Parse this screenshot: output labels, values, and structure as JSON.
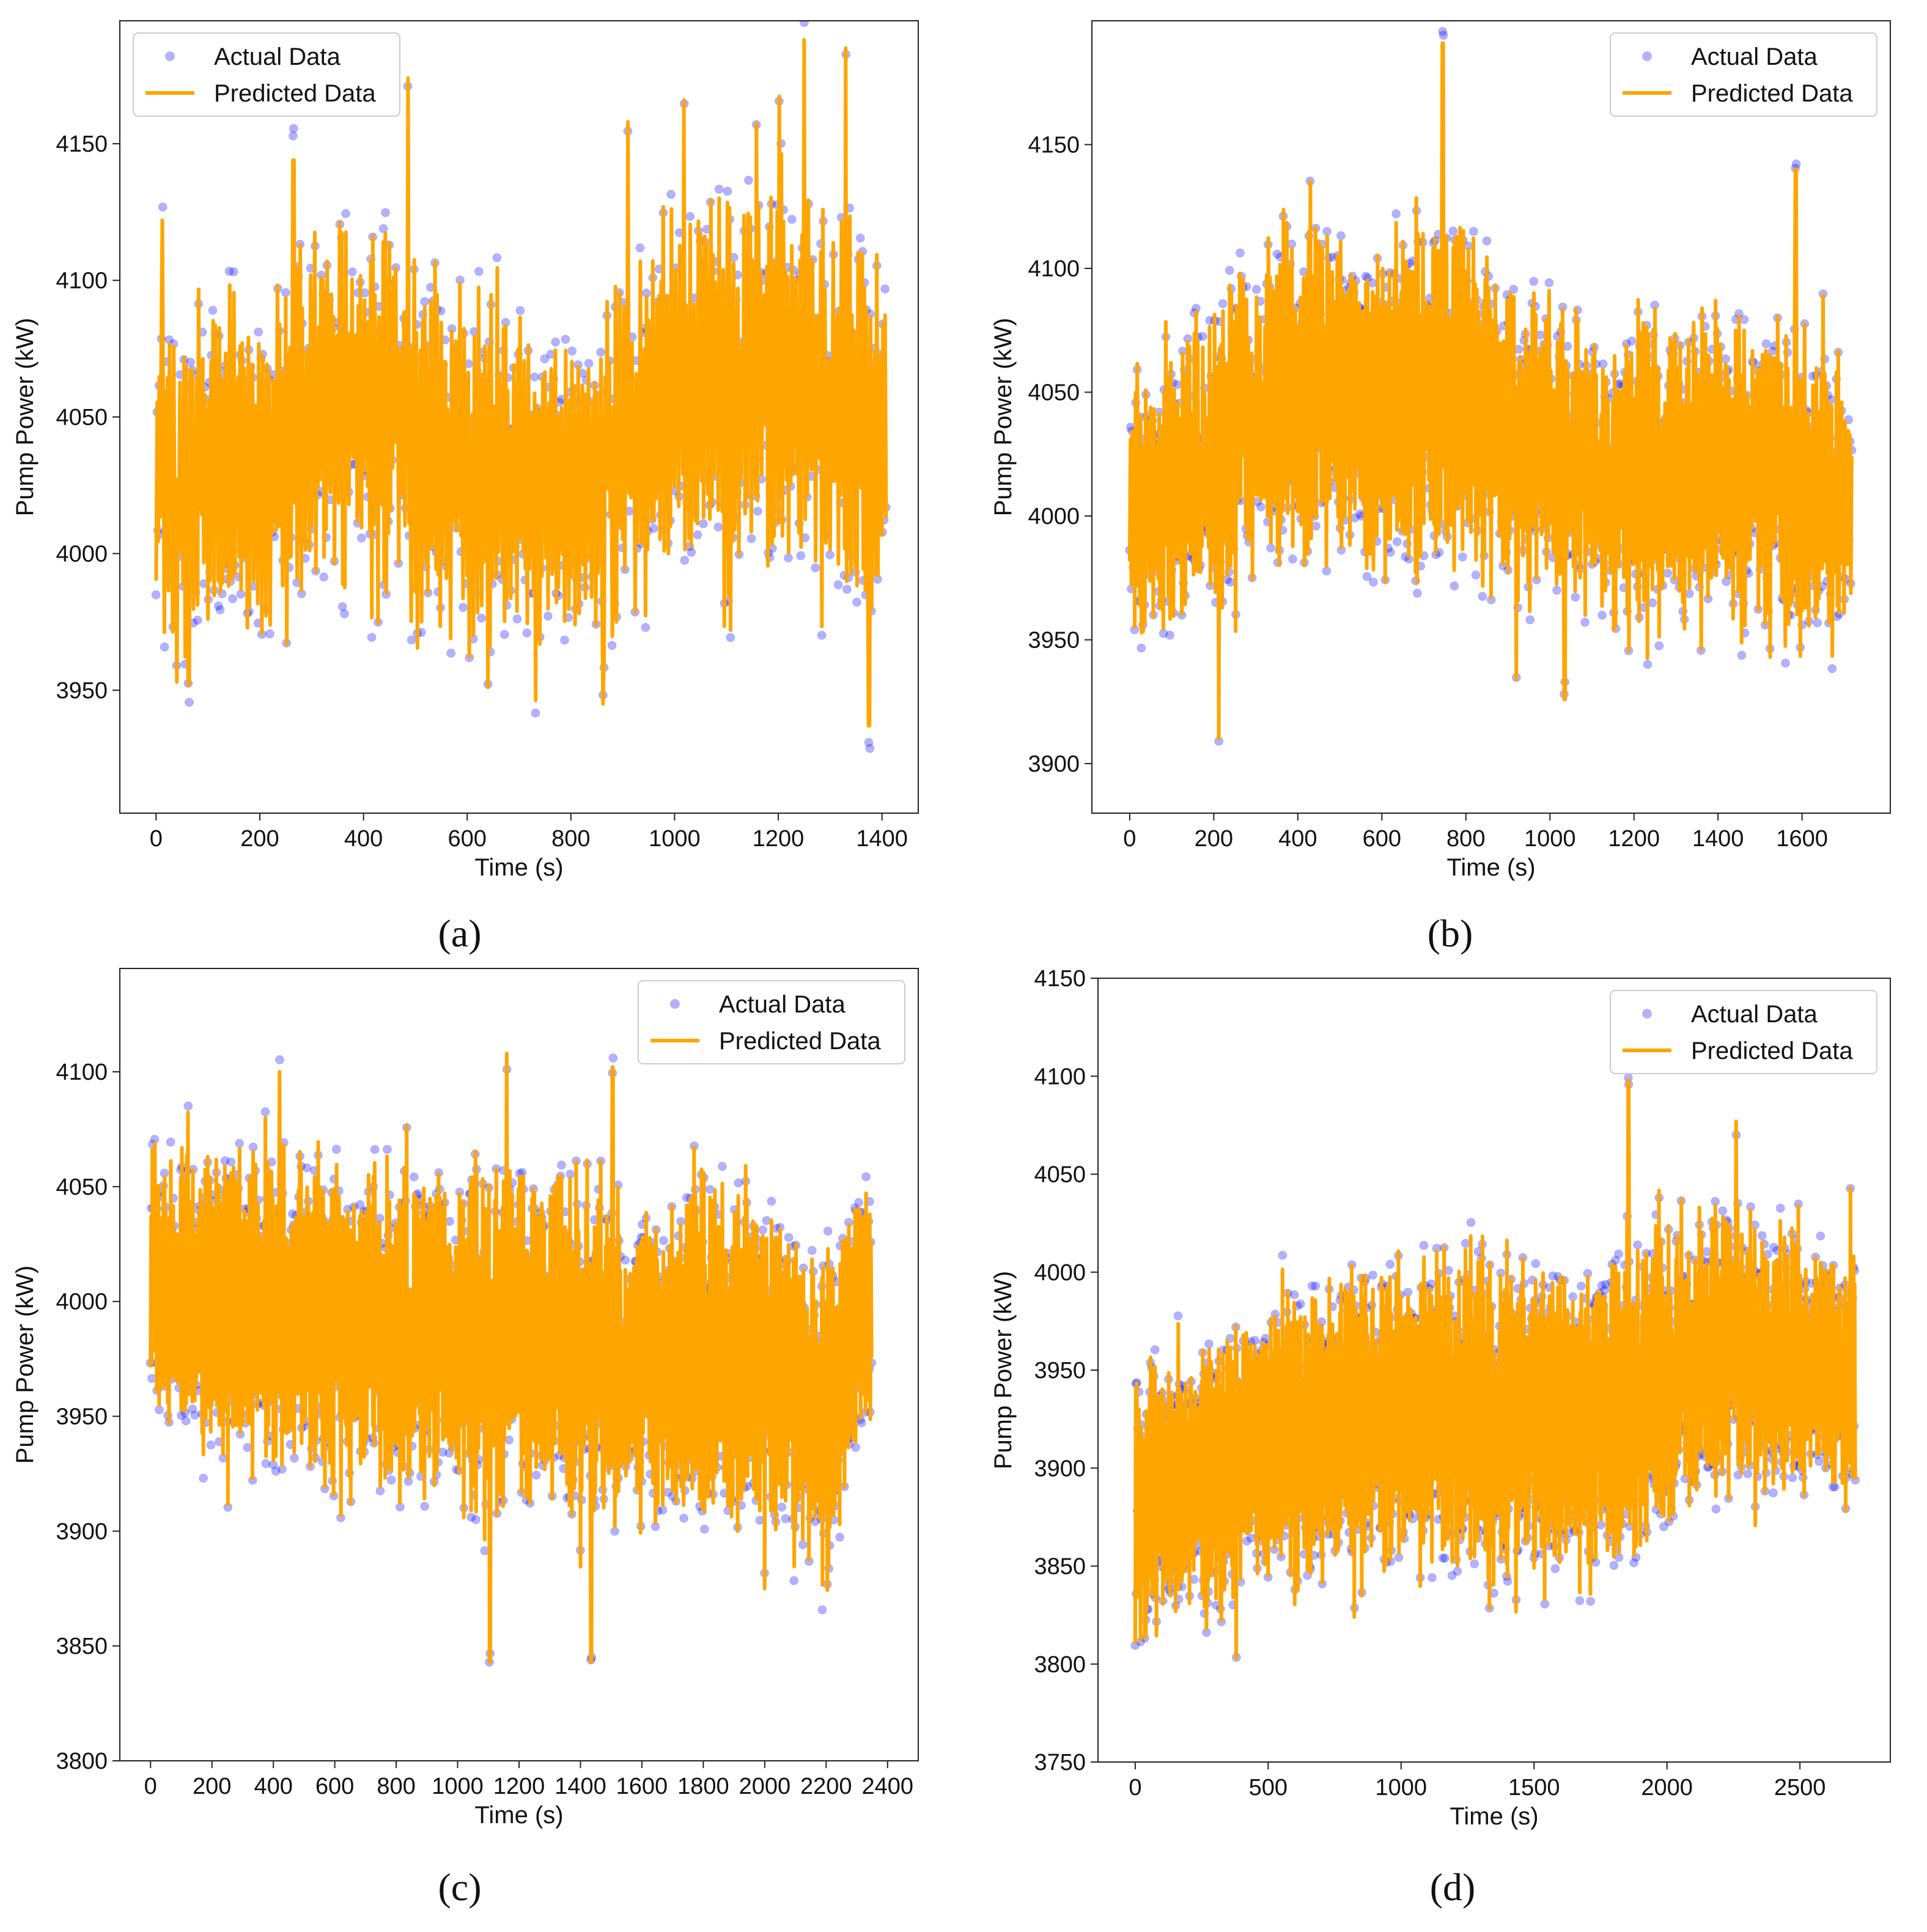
{
  "chart_data": [
    {
      "id": "a",
      "type": "scatter+line",
      "panel_label": "(a)",
      "xlabel": "Time (s)",
      "ylabel": "Pump Power (kW)",
      "xlim": [
        -70,
        1470
      ],
      "ylim": [
        3905,
        4195
      ],
      "xticks": [
        0,
        200,
        400,
        600,
        800,
        1000,
        1200,
        1400
      ],
      "yticks": [
        3950,
        4000,
        4050,
        4100,
        4150
      ],
      "legend": {
        "position": "top-left",
        "entries": [
          "Actual Data",
          "Predicted Data"
        ]
      },
      "n_points": 1410,
      "series": [
        {
          "name": "Actual Data",
          "style": "scatter",
          "color": "#0000ff",
          "alpha": 0.3
        },
        {
          "name": "Predicted Data",
          "style": "line",
          "color": "#ffa500"
        }
      ],
      "envelope": [
        {
          "t": 0,
          "mean": 4030,
          "amp": 45
        },
        {
          "t": 200,
          "mean": 4035,
          "amp": 50
        },
        {
          "t": 400,
          "mean": 4060,
          "amp": 55
        },
        {
          "t": 600,
          "mean": 4030,
          "amp": 50
        },
        {
          "t": 800,
          "mean": 4025,
          "amp": 45
        },
        {
          "t": 1000,
          "mean": 4055,
          "amp": 55
        },
        {
          "t": 1200,
          "mean": 4065,
          "amp": 60
        },
        {
          "t": 1410,
          "mean": 4050,
          "amp": 60
        }
      ],
      "peaks": [
        {
          "t": 12,
          "v": 4122
        },
        {
          "t": 40,
          "v": 3953
        },
        {
          "t": 63,
          "v": 3952
        },
        {
          "t": 265,
          "v": 4144
        },
        {
          "t": 486,
          "v": 4174
        },
        {
          "t": 640,
          "v": 3951
        },
        {
          "t": 862,
          "v": 3945
        },
        {
          "t": 910,
          "v": 4158
        },
        {
          "t": 1018,
          "v": 4166
        },
        {
          "t": 1250,
          "v": 4188
        },
        {
          "t": 1330,
          "v": 4185
        },
        {
          "t": 1375,
          "v": 3937
        }
      ]
    },
    {
      "id": "b",
      "type": "scatter+line",
      "panel_label": "(b)",
      "xlabel": "Time (s)",
      "ylabel": "Pump Power (kW)",
      "xlim": [
        -90,
        1810
      ],
      "ylim": [
        3880,
        4200
      ],
      "xticks": [
        0,
        200,
        400,
        600,
        800,
        1000,
        1200,
        1400,
        1600
      ],
      "yticks": [
        3900,
        3950,
        4000,
        4050,
        4100,
        4150
      ],
      "legend": {
        "position": "top-right",
        "entries": [
          "Actual Data",
          "Predicted Data"
        ]
      },
      "n_points": 1720,
      "series": [
        {
          "name": "Actual Data",
          "style": "scatter",
          "color": "#0000ff",
          "alpha": 0.3
        },
        {
          "name": "Predicted Data",
          "style": "line",
          "color": "#ffa500"
        }
      ],
      "envelope": [
        {
          "t": 0,
          "mean": 4000,
          "amp": 40
        },
        {
          "t": 200,
          "mean": 4025,
          "amp": 50
        },
        {
          "t": 400,
          "mean": 4050,
          "amp": 55
        },
        {
          "t": 600,
          "mean": 4045,
          "amp": 55
        },
        {
          "t": 740,
          "mean": 4060,
          "amp": 60
        },
        {
          "t": 900,
          "mean": 4030,
          "amp": 50
        },
        {
          "t": 1200,
          "mean": 4015,
          "amp": 50
        },
        {
          "t": 1400,
          "mean": 4020,
          "amp": 50
        },
        {
          "t": 1720,
          "mean": 4005,
          "amp": 45
        }
      ],
      "peaks": [
        {
          "t": 212,
          "v": 3910
        },
        {
          "t": 745,
          "v": 4191
        },
        {
          "t": 1035,
          "v": 3926
        },
        {
          "t": 1585,
          "v": 4140
        },
        {
          "t": 430,
          "v": 4135
        },
        {
          "t": 920,
          "v": 3934
        }
      ]
    },
    {
      "id": "c",
      "type": "scatter+line",
      "panel_label": "(c)",
      "xlabel": "Time (s)",
      "ylabel": "Pump Power (kW)",
      "xlim": [
        -100,
        2500
      ],
      "ylim": [
        3800,
        4145
      ],
      "xticks": [
        0,
        200,
        400,
        600,
        800,
        1000,
        1200,
        1400,
        1600,
        1800,
        2000,
        2200,
        2400
      ],
      "yticks": [
        3800,
        3850,
        3900,
        3950,
        4000,
        4050,
        4100
      ],
      "legend": {
        "position": "top-right",
        "entries": [
          "Actual Data",
          "Predicted Data"
        ]
      },
      "n_points": 2350,
      "series": [
        {
          "name": "Actual Data",
          "style": "scatter",
          "color": "#0000ff",
          "alpha": 0.3
        },
        {
          "name": "Predicted Data",
          "style": "line",
          "color": "#ffa500"
        }
      ],
      "envelope": [
        {
          "t": 0,
          "mean": 4010,
          "amp": 45
        },
        {
          "t": 400,
          "mean": 3995,
          "amp": 55
        },
        {
          "t": 800,
          "mean": 3990,
          "amp": 55
        },
        {
          "t": 1200,
          "mean": 3985,
          "amp": 60
        },
        {
          "t": 1600,
          "mean": 3975,
          "amp": 55
        },
        {
          "t": 2000,
          "mean": 3975,
          "amp": 60
        },
        {
          "t": 2200,
          "mean": 3955,
          "amp": 50
        },
        {
          "t": 2350,
          "mean": 4005,
          "amp": 45
        }
      ],
      "peaks": [
        {
          "t": 1105,
          "v": 3843
        },
        {
          "t": 1160,
          "v": 4108
        },
        {
          "t": 1435,
          "v": 3843
        },
        {
          "t": 420,
          "v": 4100
        },
        {
          "t": 1505,
          "v": 4102
        },
        {
          "t": 2000,
          "v": 3875
        }
      ]
    },
    {
      "id": "d",
      "type": "scatter+line",
      "panel_label": "(d)",
      "xlabel": "Time (s)",
      "ylabel": "Pump Power (kW)",
      "xlim": [
        -140,
        2840
      ],
      "ylim": [
        3750,
        4150
      ],
      "xticks": [
        0,
        500,
        1000,
        1500,
        2000,
        2500
      ],
      "yticks": [
        3750,
        3800,
        3850,
        3900,
        3950,
        4000,
        4050,
        4100,
        4150
      ],
      "legend": {
        "position": "top-right",
        "entries": [
          "Actual Data",
          "Predicted Data"
        ]
      },
      "n_points": 2710,
      "series": [
        {
          "name": "Actual Data",
          "style": "scatter",
          "color": "#0000ff",
          "alpha": 0.3
        },
        {
          "name": "Predicted Data",
          "style": "line",
          "color": "#ffa500"
        }
      ],
      "envelope": [
        {
          "t": 0,
          "mean": 3880,
          "amp": 50
        },
        {
          "t": 500,
          "mean": 3910,
          "amp": 55
        },
        {
          "t": 1000,
          "mean": 3935,
          "amp": 60
        },
        {
          "t": 1500,
          "mean": 3920,
          "amp": 60
        },
        {
          "t": 1900,
          "mean": 3935,
          "amp": 60
        },
        {
          "t": 2200,
          "mean": 3960,
          "amp": 55
        },
        {
          "t": 2710,
          "mean": 3945,
          "amp": 50
        }
      ],
      "peaks": [
        {
          "t": 380,
          "v": 3803
        },
        {
          "t": 1855,
          "v": 4098
        },
        {
          "t": 2260,
          "v": 4077
        },
        {
          "t": 40,
          "v": 3815
        },
        {
          "t": 1540,
          "v": 3833
        },
        {
          "t": 2690,
          "v": 4043
        }
      ]
    }
  ]
}
